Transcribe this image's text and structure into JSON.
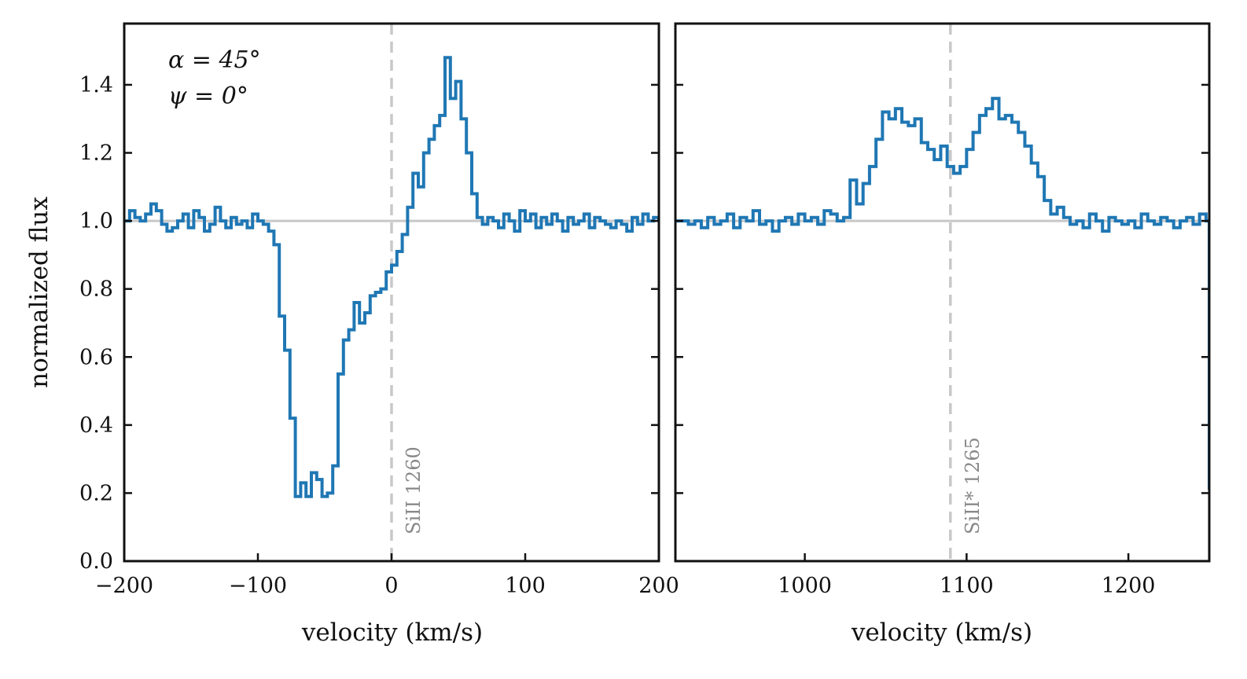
{
  "chart_data": [
    {
      "type": "line",
      "panel": "left",
      "xlabel": "velocity (km/s)",
      "ylabel": "normalized flux",
      "xlim": [
        -200,
        200
      ],
      "ylim": [
        0.0,
        1.58
      ],
      "xticks": [
        -200,
        -100,
        0,
        100,
        200
      ],
      "xtick_labels": [
        "−200",
        "−100",
        "0",
        "100",
        "200"
      ],
      "yticks": [
        0.0,
        0.2,
        0.4,
        0.6,
        0.8,
        1.0,
        1.2,
        1.4
      ],
      "ytick_labels": [
        "0.0",
        "0.2",
        "0.4",
        "0.6",
        "0.8",
        "1.0",
        "1.2",
        "1.4"
      ],
      "annotations": [
        "α = 45°",
        "ψ = 0°"
      ],
      "reference_line": {
        "x": 0,
        "label": "SiII 1260"
      },
      "continuum": 1.0,
      "color": "#1f77b4",
      "series": [
        {
          "x": [
            -200,
            -196,
            -192,
            -188,
            -184,
            -180,
            -176,
            -172,
            -168,
            -164,
            -160,
            -156,
            -152,
            -148,
            -144,
            -140,
            -136,
            -132,
            -128,
            -124,
            -120,
            -116,
            -112,
            -108,
            -104,
            -100,
            -96,
            -92,
            -88,
            -84,
            -80,
            -76,
            -72,
            -68,
            -64,
            -60,
            -56,
            -52,
            -48,
            -44,
            -40,
            -36,
            -32,
            -28,
            -24,
            -20,
            -16,
            -12,
            -8,
            -4,
            0,
            4,
            8,
            12,
            16,
            20,
            24,
            28,
            32,
            36,
            40,
            44,
            48,
            52,
            56,
            60,
            64,
            68,
            72,
            76,
            80,
            84,
            88,
            92,
            96,
            100,
            104,
            108,
            112,
            116,
            120,
            124,
            128,
            132,
            136,
            140,
            144,
            148,
            152,
            156,
            160,
            164,
            168,
            172,
            176,
            180,
            184,
            188,
            192,
            196,
            200
          ],
          "y": [
            1.0,
            1.03,
            1.01,
            1.0,
            1.02,
            1.05,
            1.03,
            0.99,
            0.97,
            0.98,
            1.0,
            1.02,
            0.98,
            1.03,
            1.01,
            0.97,
            0.99,
            1.04,
            1.0,
            0.98,
            1.01,
            0.99,
            1.0,
            0.98,
            1.02,
            1.0,
            0.99,
            0.97,
            0.93,
            0.72,
            0.62,
            0.42,
            0.19,
            0.23,
            0.19,
            0.26,
            0.24,
            0.19,
            0.2,
            0.28,
            0.55,
            0.65,
            0.68,
            0.76,
            0.7,
            0.73,
            0.78,
            0.79,
            0.8,
            0.85,
            0.87,
            0.91,
            0.96,
            1.04,
            1.14,
            1.1,
            1.2,
            1.24,
            1.28,
            1.31,
            1.48,
            1.36,
            1.41,
            1.3,
            1.2,
            1.08,
            1.01,
            0.99,
            1.01,
            1.0,
            0.98,
            1.02,
            1.0,
            0.97,
            1.03,
            1.0,
            1.02,
            0.98,
            1.01,
            0.99,
            1.02,
            1.0,
            0.97,
            1.01,
            0.99,
            1.0,
            1.02,
            0.98,
            1.01,
            1.0,
            0.99,
            0.98,
            1.0,
            0.99,
            0.97,
            1.01,
            0.99,
            1.02,
            1.0,
            1.01,
            1.0
          ]
        }
      ]
    },
    {
      "type": "line",
      "panel": "right",
      "xlabel": "velocity (km/s)",
      "xlim": [
        920,
        1250
      ],
      "ylim": [
        0.0,
        1.58
      ],
      "xticks": [
        1000,
        1100,
        1200
      ],
      "xtick_labels": [
        "1000",
        "1100",
        "1200"
      ],
      "reference_line": {
        "x": 1090,
        "label": "SiII* 1265"
      },
      "continuum": 1.0,
      "color": "#1f77b4",
      "series": [
        {
          "x": [
            920,
            924,
            928,
            932,
            936,
            940,
            944,
            948,
            952,
            956,
            960,
            964,
            968,
            972,
            976,
            980,
            984,
            988,
            992,
            996,
            1000,
            1004,
            1008,
            1012,
            1016,
            1020,
            1024,
            1028,
            1032,
            1036,
            1040,
            1044,
            1048,
            1052,
            1056,
            1060,
            1064,
            1068,
            1072,
            1076,
            1080,
            1084,
            1088,
            1092,
            1096,
            1100,
            1104,
            1108,
            1112,
            1116,
            1120,
            1124,
            1128,
            1132,
            1136,
            1140,
            1144,
            1148,
            1152,
            1156,
            1160,
            1164,
            1168,
            1172,
            1176,
            1180,
            1184,
            1188,
            1192,
            1196,
            1200,
            1204,
            1208,
            1212,
            1216,
            1220,
            1224,
            1228,
            1232,
            1236,
            1240,
            1244,
            1248,
            1250
          ],
          "y": [
            1.0,
            1.0,
            0.99,
            1.0,
            0.98,
            1.01,
            0.99,
            1.0,
            1.02,
            0.98,
            1.01,
            1.0,
            1.03,
            0.99,
            1.0,
            0.97,
            1.0,
            1.01,
            0.99,
            1.02,
            1.0,
            1.01,
            0.99,
            1.03,
            1.02,
            1.0,
            1.01,
            1.12,
            1.05,
            1.11,
            1.16,
            1.24,
            1.32,
            1.3,
            1.33,
            1.29,
            1.28,
            1.3,
            1.23,
            1.21,
            1.18,
            1.22,
            1.16,
            1.14,
            1.16,
            1.21,
            1.26,
            1.31,
            1.33,
            1.36,
            1.3,
            1.31,
            1.29,
            1.26,
            1.22,
            1.17,
            1.13,
            1.06,
            1.02,
            1.04,
            1.01,
            0.99,
            1.0,
            0.98,
            1.02,
            1.0,
            0.97,
            1.01,
            1.0,
            0.99,
            1.0,
            0.98,
            1.02,
            1.0,
            0.99,
            1.01,
            1.0,
            0.98,
            1.0,
            1.01,
            0.99,
            1.02,
            1.0,
            0.21
          ]
        }
      ]
    }
  ]
}
